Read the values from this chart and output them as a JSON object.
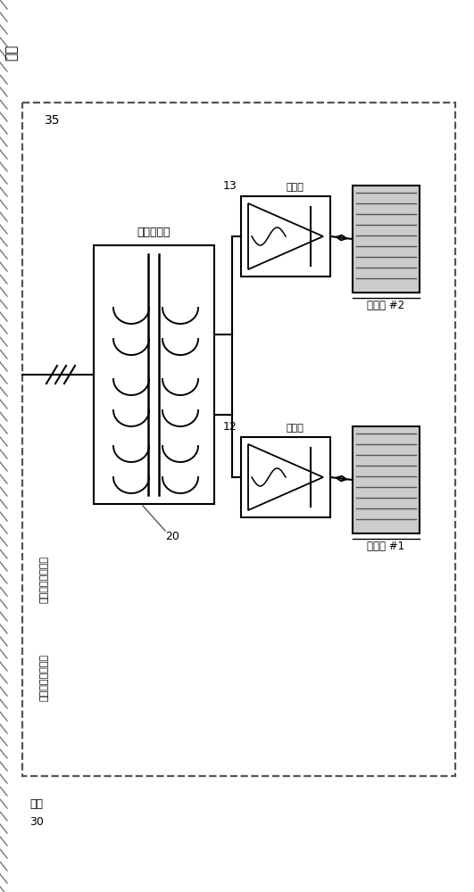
{
  "title_right": "负载",
  "label_35": "35",
  "label_20": "20",
  "label_30": "电图",
  "label_30b": "30",
  "inverter1_label": "12",
  "inverter1_sublabel": "逆变器",
  "inverter2_label": "13",
  "inverter2_sublabel": "逆变器",
  "battery1_label": "电池组 #1",
  "battery2_label": "电池组 #2",
  "transformer_label": "公共变压器",
  "caption_line1": "使用逆变器的两个",
  "caption_line2": "独立控制的电池组",
  "bg_color": "#ffffff",
  "dashed_color": "#555555",
  "text_color": "#000000"
}
